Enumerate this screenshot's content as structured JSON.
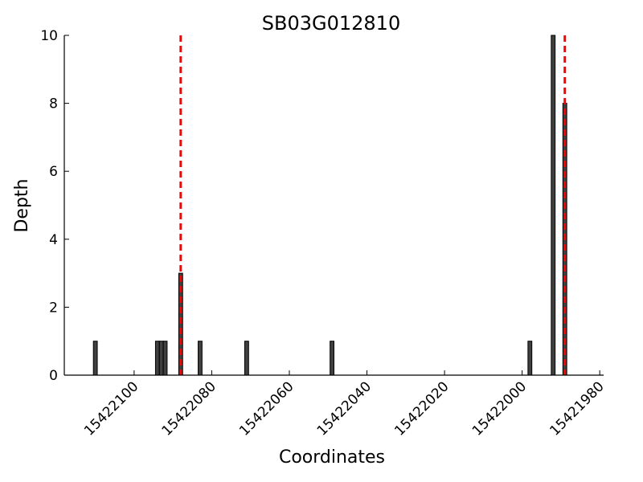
{
  "chart_data": {
    "type": "bar",
    "title": "SB03G012810",
    "xlabel": "Coordinates",
    "ylabel": "Depth",
    "xlim": [
      15422118,
      15421979
    ],
    "ylim": [
      0,
      10
    ],
    "x_reversed": true,
    "x_ticks": [
      15422100,
      15422080,
      15422060,
      15422040,
      15422020,
      15422000,
      15421980
    ],
    "x_tick_labels": [
      "15422100",
      "15422080",
      "15422060",
      "15422040",
      "15422020",
      "15422000",
      "15421980"
    ],
    "y_ticks": [
      0,
      2,
      4,
      6,
      8,
      10
    ],
    "y_tick_labels": [
      "0",
      "2",
      "4",
      "6",
      "8",
      "10"
    ],
    "bar_color": "#404040",
    "bar_edge_color": "#000000",
    "bars": [
      {
        "x": 15422110,
        "depth": 1
      },
      {
        "x": 15422094,
        "depth": 1
      },
      {
        "x": 15422093,
        "depth": 1
      },
      {
        "x": 15422092,
        "depth": 1
      },
      {
        "x": 15422088,
        "depth": 3
      },
      {
        "x": 15422083,
        "depth": 1
      },
      {
        "x": 15422071,
        "depth": 1
      },
      {
        "x": 15422049,
        "depth": 1
      },
      {
        "x": 15421998,
        "depth": 1
      },
      {
        "x": 15421992,
        "depth": 10
      },
      {
        "x": 15421989,
        "depth": 8
      }
    ],
    "vlines": [
      15422088,
      15421989
    ],
    "vline_color": "#ff0000",
    "vline_style": "dashed",
    "grid": false,
    "legend": false
  }
}
